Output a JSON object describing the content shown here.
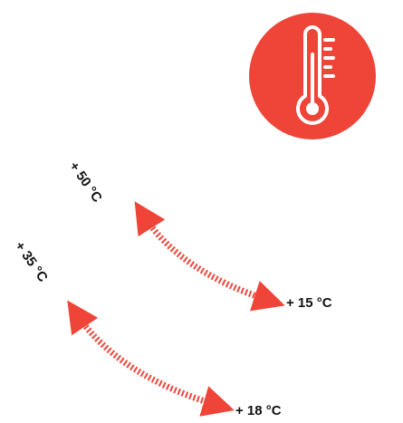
{
  "colors": {
    "accent": "#ef4438",
    "icon_fg": "#ffffff",
    "text": "#111111"
  },
  "badge": {
    "icon": "thermometer-icon"
  },
  "ranges": [
    {
      "max_label": "+ 50 °C",
      "min_label": "+ 15 °C"
    },
    {
      "max_label": "+ 35 °C",
      "min_label": "+ 18 °C"
    }
  ]
}
